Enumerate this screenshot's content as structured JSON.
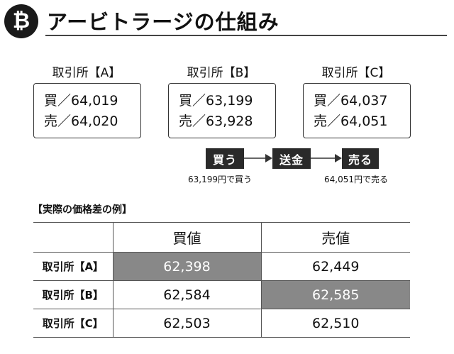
{
  "header": {
    "logo_glyph": "₿",
    "title": "アービトラージの仕組み"
  },
  "exchanges": [
    {
      "label": "取引所【A】",
      "buy": "買／64,019",
      "sell": "売／64,020"
    },
    {
      "label": "取引所【B】",
      "buy": "買／63,199",
      "sell": "売／63,928"
    },
    {
      "label": "取引所【C】",
      "buy": "買／64,037",
      "sell": "売／64,051"
    }
  ],
  "flow": {
    "steps": [
      "買う",
      "送金",
      "売る"
    ],
    "notes": [
      "63,199円で買う",
      "64,051円で売る"
    ]
  },
  "table": {
    "title": "【実際の価格差の例】",
    "columns": [
      "",
      "買値",
      "売値"
    ],
    "rows": [
      {
        "label": "取引所【A】",
        "buy": "62,398",
        "sell": "62,449"
      },
      {
        "label": "取引所【B】",
        "buy": "62,584",
        "sell": "62,585"
      },
      {
        "label": "取引所【C】",
        "buy": "62,503",
        "sell": "62,510"
      }
    ],
    "highlight_color": "#888888"
  }
}
